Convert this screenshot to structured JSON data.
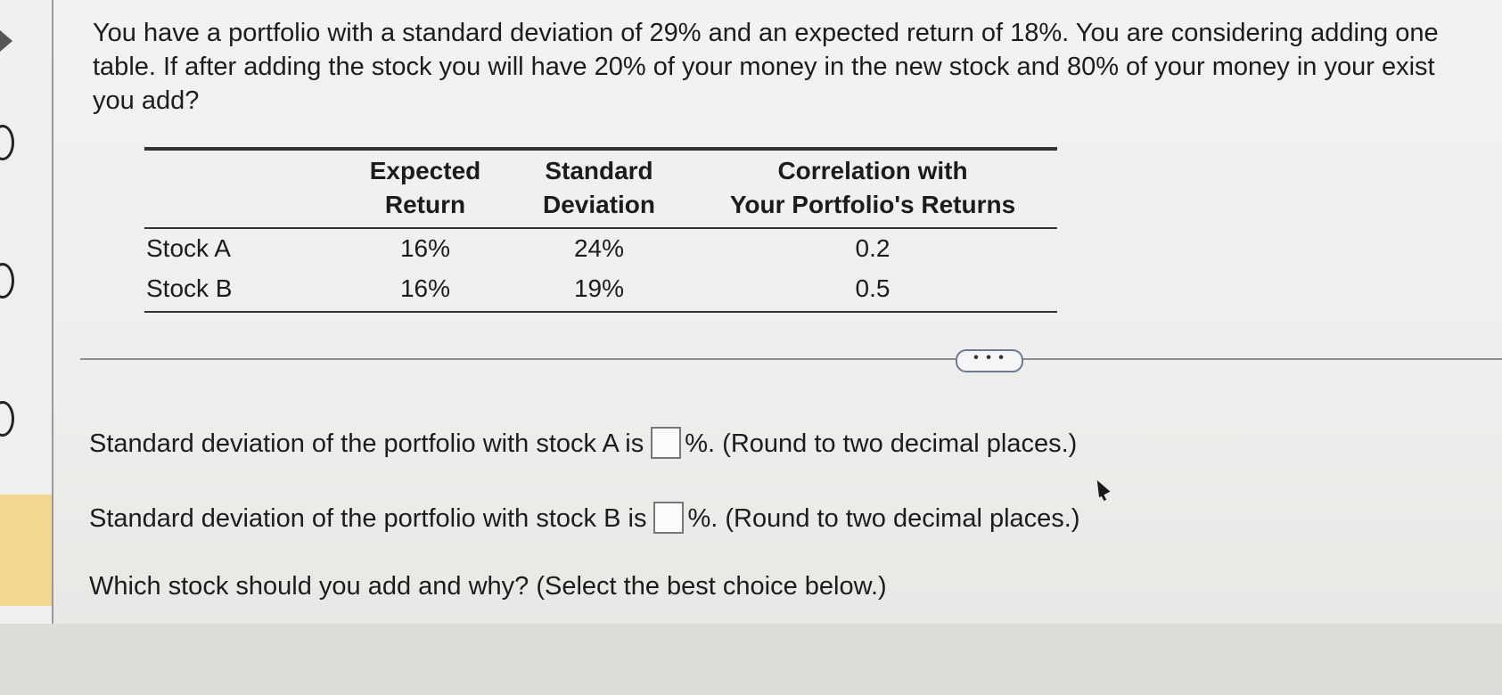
{
  "question": {
    "line1": "You have a portfolio with a standard deviation of 29% and an expected return of 18%. You are considering adding one",
    "line2": "table. If after adding the stock you will have 20% of your money in the new stock and 80% of your money in your exist",
    "line3": "you add?"
  },
  "table": {
    "headers": [
      {
        "line1": "Expected",
        "line2": "Return"
      },
      {
        "line1": "Standard",
        "line2": "Deviation"
      },
      {
        "line1": "Correlation with",
        "line2": "Your Portfolio's Returns"
      }
    ],
    "rows": [
      {
        "label": "Stock A",
        "expected_return": "16%",
        "std_dev": "24%",
        "correlation": "0.2"
      },
      {
        "label": "Stock B",
        "expected_return": "16%",
        "std_dev": "19%",
        "correlation": "0.5"
      }
    ]
  },
  "more_button": {
    "label": "• • •"
  },
  "answers": {
    "stock_a": {
      "prefix": "Standard deviation of the portfolio with stock A is",
      "value": "",
      "suffix": "%. (Round to two decimal places.)"
    },
    "stock_b": {
      "prefix": "Standard deviation of the portfolio with stock B is",
      "value": "",
      "suffix": "%. (Round to two decimal places.)"
    },
    "which_stock": "Which stock should you add and why? (Select the best choice below.)"
  }
}
